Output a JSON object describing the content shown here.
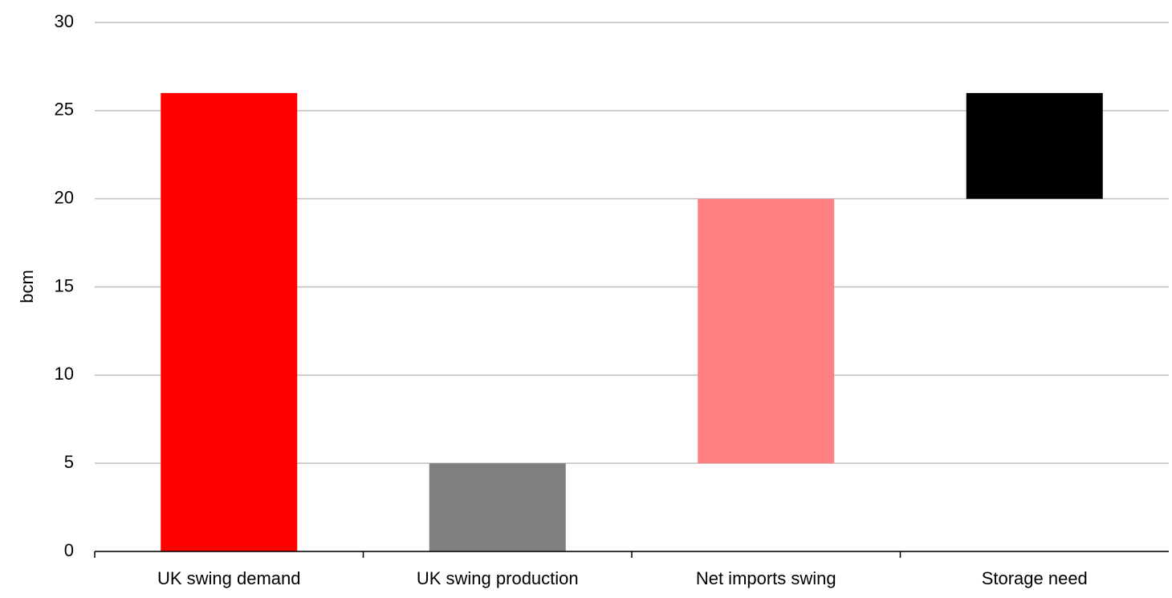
{
  "chart_data": {
    "type": "waterfall",
    "y_label": "bcm",
    "categories": [
      "UK swing demand",
      "UK swing production",
      "Net imports swing",
      "Storage need"
    ],
    "values": [
      26,
      5,
      15,
      6
    ],
    "is_total": [
      true,
      false,
      false,
      false
    ],
    "colors": [
      "#ff0000",
      "#808080",
      "#ff8080",
      "#000000"
    ],
    "ylim": [
      0,
      30
    ],
    "yticks": [
      0,
      5,
      10,
      15,
      20,
      25,
      30
    ],
    "grid": true
  }
}
